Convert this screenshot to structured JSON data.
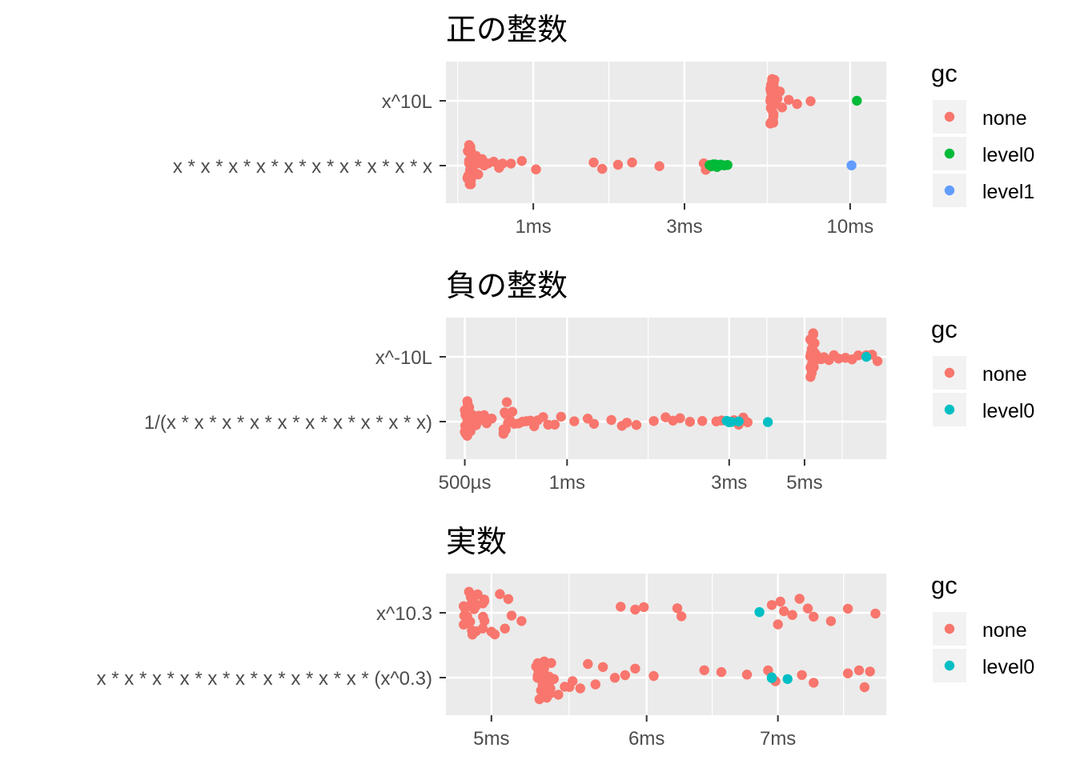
{
  "chart_data": [
    {
      "type": "scatter",
      "title": "正の整数",
      "x_scale": "log",
      "xlim_ms": [
        0.53,
        13.0
      ],
      "x_ticks": [
        {
          "value": 1,
          "label": "1ms"
        },
        {
          "value": 3,
          "label": "3ms"
        },
        {
          "value": 10,
          "label": "10ms"
        }
      ],
      "categories": [
        "x^10L",
        "x * x * x * x * x * x * x * x * x * x"
      ],
      "legend": {
        "title": "gc",
        "position": "right",
        "entries": [
          "none",
          "level0",
          "level1"
        ]
      },
      "series": [
        {
          "name": "none",
          "color": "#F8766D",
          "points": [
            {
              "y": "x * x * x * x * x * x * x * x * x * x",
              "x_ms": [
                0.62,
                0.62,
                0.625,
                0.63,
                0.63,
                0.635,
                0.64,
                0.64,
                0.645,
                0.65,
                0.66,
                0.67,
                0.68,
                0.69,
                0.7,
                0.72,
                0.75,
                0.78,
                0.8,
                0.85,
                0.92,
                1.02,
                1.55,
                1.65,
                1.85,
                2.05,
                2.5,
                3.45,
                3.5,
                3.55
              ]
            },
            {
              "y": "x^10L",
              "x_ms": [
                5.6,
                5.6,
                5.62,
                5.62,
                5.63,
                5.65,
                5.65,
                5.66,
                5.68,
                5.7,
                5.72,
                5.75,
                5.8,
                5.9,
                6.0,
                6.1,
                6.4,
                6.8,
                7.5
              ]
            }
          ]
        },
        {
          "name": "level0",
          "color": "#00BA38",
          "points": [
            {
              "y": "x * x * x * x * x * x * x * x * x * x",
              "x_ms": [
                3.6,
                3.65,
                3.7,
                3.75,
                3.8,
                3.85,
                3.9,
                4.0,
                4.1
              ]
            },
            {
              "y": "x^10L",
              "x_ms": [
                10.5
              ]
            }
          ]
        },
        {
          "name": "level1",
          "color": "#619CFF",
          "points": [
            {
              "y": "x * x * x * x * x * x * x * x * x * x",
              "x_ms": [
                10.1
              ]
            }
          ]
        }
      ]
    },
    {
      "type": "scatter",
      "title": "負の整数",
      "x_scale": "log",
      "xlim_ms": [
        0.44,
        8.7
      ],
      "x_ticks": [
        {
          "value": 0.5,
          "label": "500µs"
        },
        {
          "value": 1,
          "label": "1ms"
        },
        {
          "value": 3,
          "label": "3ms"
        },
        {
          "value": 5,
          "label": "5ms"
        }
      ],
      "categories": [
        "x^-10L",
        "1/(x * x * x * x * x * x * x * x * x * x)"
      ],
      "legend": {
        "title": "gc",
        "position": "right",
        "entries": [
          "none",
          "level0"
        ]
      },
      "series": [
        {
          "name": "none",
          "color": "#F8766D",
          "points": [
            {
              "y": "1/(x * x * x * x * x * x * x * x * x * x)",
              "x_ms": [
                0.5,
                0.5,
                0.505,
                0.51,
                0.51,
                0.515,
                0.52,
                0.525,
                0.53,
                0.54,
                0.55,
                0.56,
                0.57,
                0.58,
                0.6,
                0.65,
                0.65,
                0.655,
                0.66,
                0.66,
                0.665,
                0.67,
                0.68,
                0.69,
                0.7,
                0.72,
                0.74,
                0.76,
                0.78,
                0.8,
                0.82,
                0.85,
                0.88,
                0.92,
                0.96,
                1.05,
                1.15,
                1.2,
                1.35,
                1.45,
                1.5,
                1.6,
                1.8,
                1.95,
                2.05,
                2.15,
                2.3,
                2.5,
                2.75,
                2.85,
                3.1,
                3.2,
                3.3,
                3.4
              ]
            },
            {
              "y": "x^-10L",
              "x_ms": [
                5.2,
                5.2,
                5.22,
                5.25,
                5.25,
                5.28,
                5.3,
                5.32,
                5.35,
                5.4,
                5.5,
                5.6,
                5.7,
                5.9,
                6.1,
                6.3,
                6.6,
                6.9,
                7.2,
                7.6,
                7.9,
                8.2
              ]
            }
          ]
        },
        {
          "name": "level0",
          "color": "#00BFC4",
          "points": [
            {
              "y": "1/(x * x * x * x * x * x * x * x * x * x)",
              "x_ms": [
                2.95,
                3.0,
                3.05,
                3.2,
                3.9
              ]
            },
            {
              "y": "x^-10L",
              "x_ms": [
                7.6
              ]
            }
          ]
        }
      ]
    },
    {
      "type": "scatter",
      "title": "実数",
      "x_scale": "log",
      "xlim_ms": [
        4.74,
        7.95
      ],
      "x_ticks": [
        {
          "value": 5,
          "label": "5ms"
        },
        {
          "value": 6,
          "label": "6ms"
        },
        {
          "value": 7,
          "label": "7ms"
        }
      ],
      "categories": [
        "x^10.3",
        "x * x * x * x * x * x * x * x * x * x * (x^0.3)"
      ],
      "legend": {
        "title": "gc",
        "position": "right",
        "entries": [
          "none",
          "level0"
        ]
      },
      "series": [
        {
          "name": "none",
          "color": "#F8766D",
          "points": [
            {
              "y": "x^10.3",
              "x_ms": [
                4.84,
                4.84,
                4.85,
                4.85,
                4.86,
                4.87,
                4.88,
                4.89,
                4.9,
                4.92,
                4.95,
                5.0,
                5.02,
                5.05,
                5.08,
                5.1,
                5.12,
                5.18,
                5.82,
                5.92,
                5.98,
                6.22,
                6.25,
                6.95,
                7.0,
                7.02,
                7.05,
                7.12,
                7.18,
                7.25,
                7.3,
                7.45,
                7.6,
                7.85
              ]
            },
            {
              "y": "x * x * x * x * x * x * x * x * x * x * (x^0.3)",
              "x_ms": [
                5.27,
                5.28,
                5.28,
                5.29,
                5.3,
                5.3,
                5.31,
                5.32,
                5.35,
                5.45,
                5.48,
                5.5,
                5.55,
                5.6,
                5.65,
                5.7,
                5.78,
                5.85,
                5.92,
                6.05,
                6.42,
                6.55,
                6.75,
                6.92,
                6.98,
                7.2,
                7.3,
                7.6,
                7.7,
                7.75,
                7.8
              ]
            }
          ]
        },
        {
          "name": "level0",
          "color": "#00BFC4",
          "points": [
            {
              "y": "x^10.3",
              "x_ms": [
                6.85
              ]
            },
            {
              "y": "x * x * x * x * x * x * x * x * x * x * (x^0.3)",
              "x_ms": [
                6.95,
                6.95,
                7.08
              ]
            }
          ]
        }
      ]
    }
  ]
}
